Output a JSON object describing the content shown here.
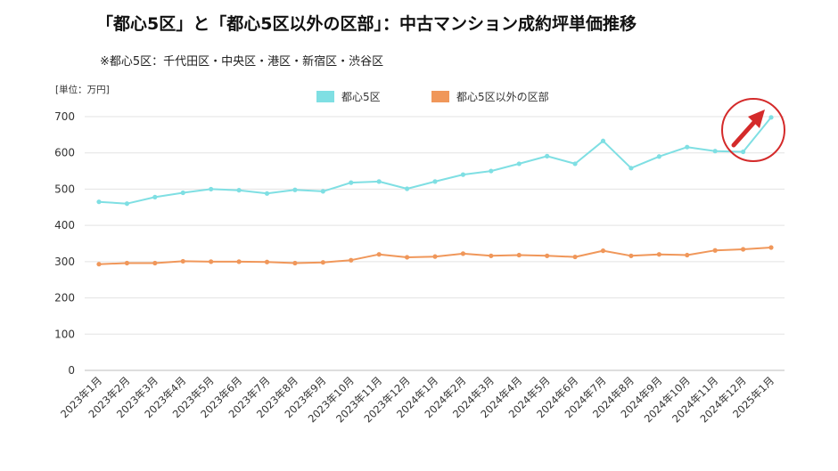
{
  "title": "「都心5区」と「都心5区以外の区部」：中古マンション成約坪単価推移",
  "subtitle": "※都心5区：千代田区・中央区・港区・新宿区・渋谷区",
  "chart_data": {
    "type": "line",
    "unit_label": "[単位：万円]",
    "categories": [
      "2023年1月",
      "2023年2月",
      "2023年3月",
      "2023年4月",
      "2023年5月",
      "2023年6月",
      "2023年7月",
      "2023年8月",
      "2023年9月",
      "2023年10月",
      "2023年11月",
      "2023年12月",
      "2024年1月",
      "2024年2月",
      "2024年3月",
      "2024年4月",
      "2024年5月",
      "2024年6月",
      "2024年7月",
      "2024年8月",
      "2024年9月",
      "2024年10月",
      "2024年11月",
      "2024年12月",
      "2025年1月"
    ],
    "ylim": [
      0,
      700
    ],
    "yticks": [
      0,
      100,
      200,
      300,
      400,
      500,
      600,
      700
    ],
    "grid": true,
    "legend_position": "top-center",
    "series": [
      {
        "name": "都心5区",
        "color": "#7fdfe3",
        "values": [
          465,
          460,
          478,
          490,
          500,
          497,
          488,
          498,
          494,
          518,
          521,
          501,
          521,
          540,
          550,
          570,
          591,
          570,
          633,
          558,
          590,
          616,
          605,
          603,
          698
        ]
      },
      {
        "name": "都心5区以外の区部",
        "color": "#f0975a",
        "values": [
          293,
          296,
          296,
          301,
          300,
          300,
          299,
          296,
          298,
          304,
          320,
          312,
          314,
          322,
          316,
          318,
          316,
          313,
          330,
          316,
          320,
          318,
          331,
          334,
          339
        ]
      }
    ],
    "annotation": {
      "type": "circle-arrow",
      "color": "#d42a2a",
      "target": "2025年1月"
    }
  }
}
